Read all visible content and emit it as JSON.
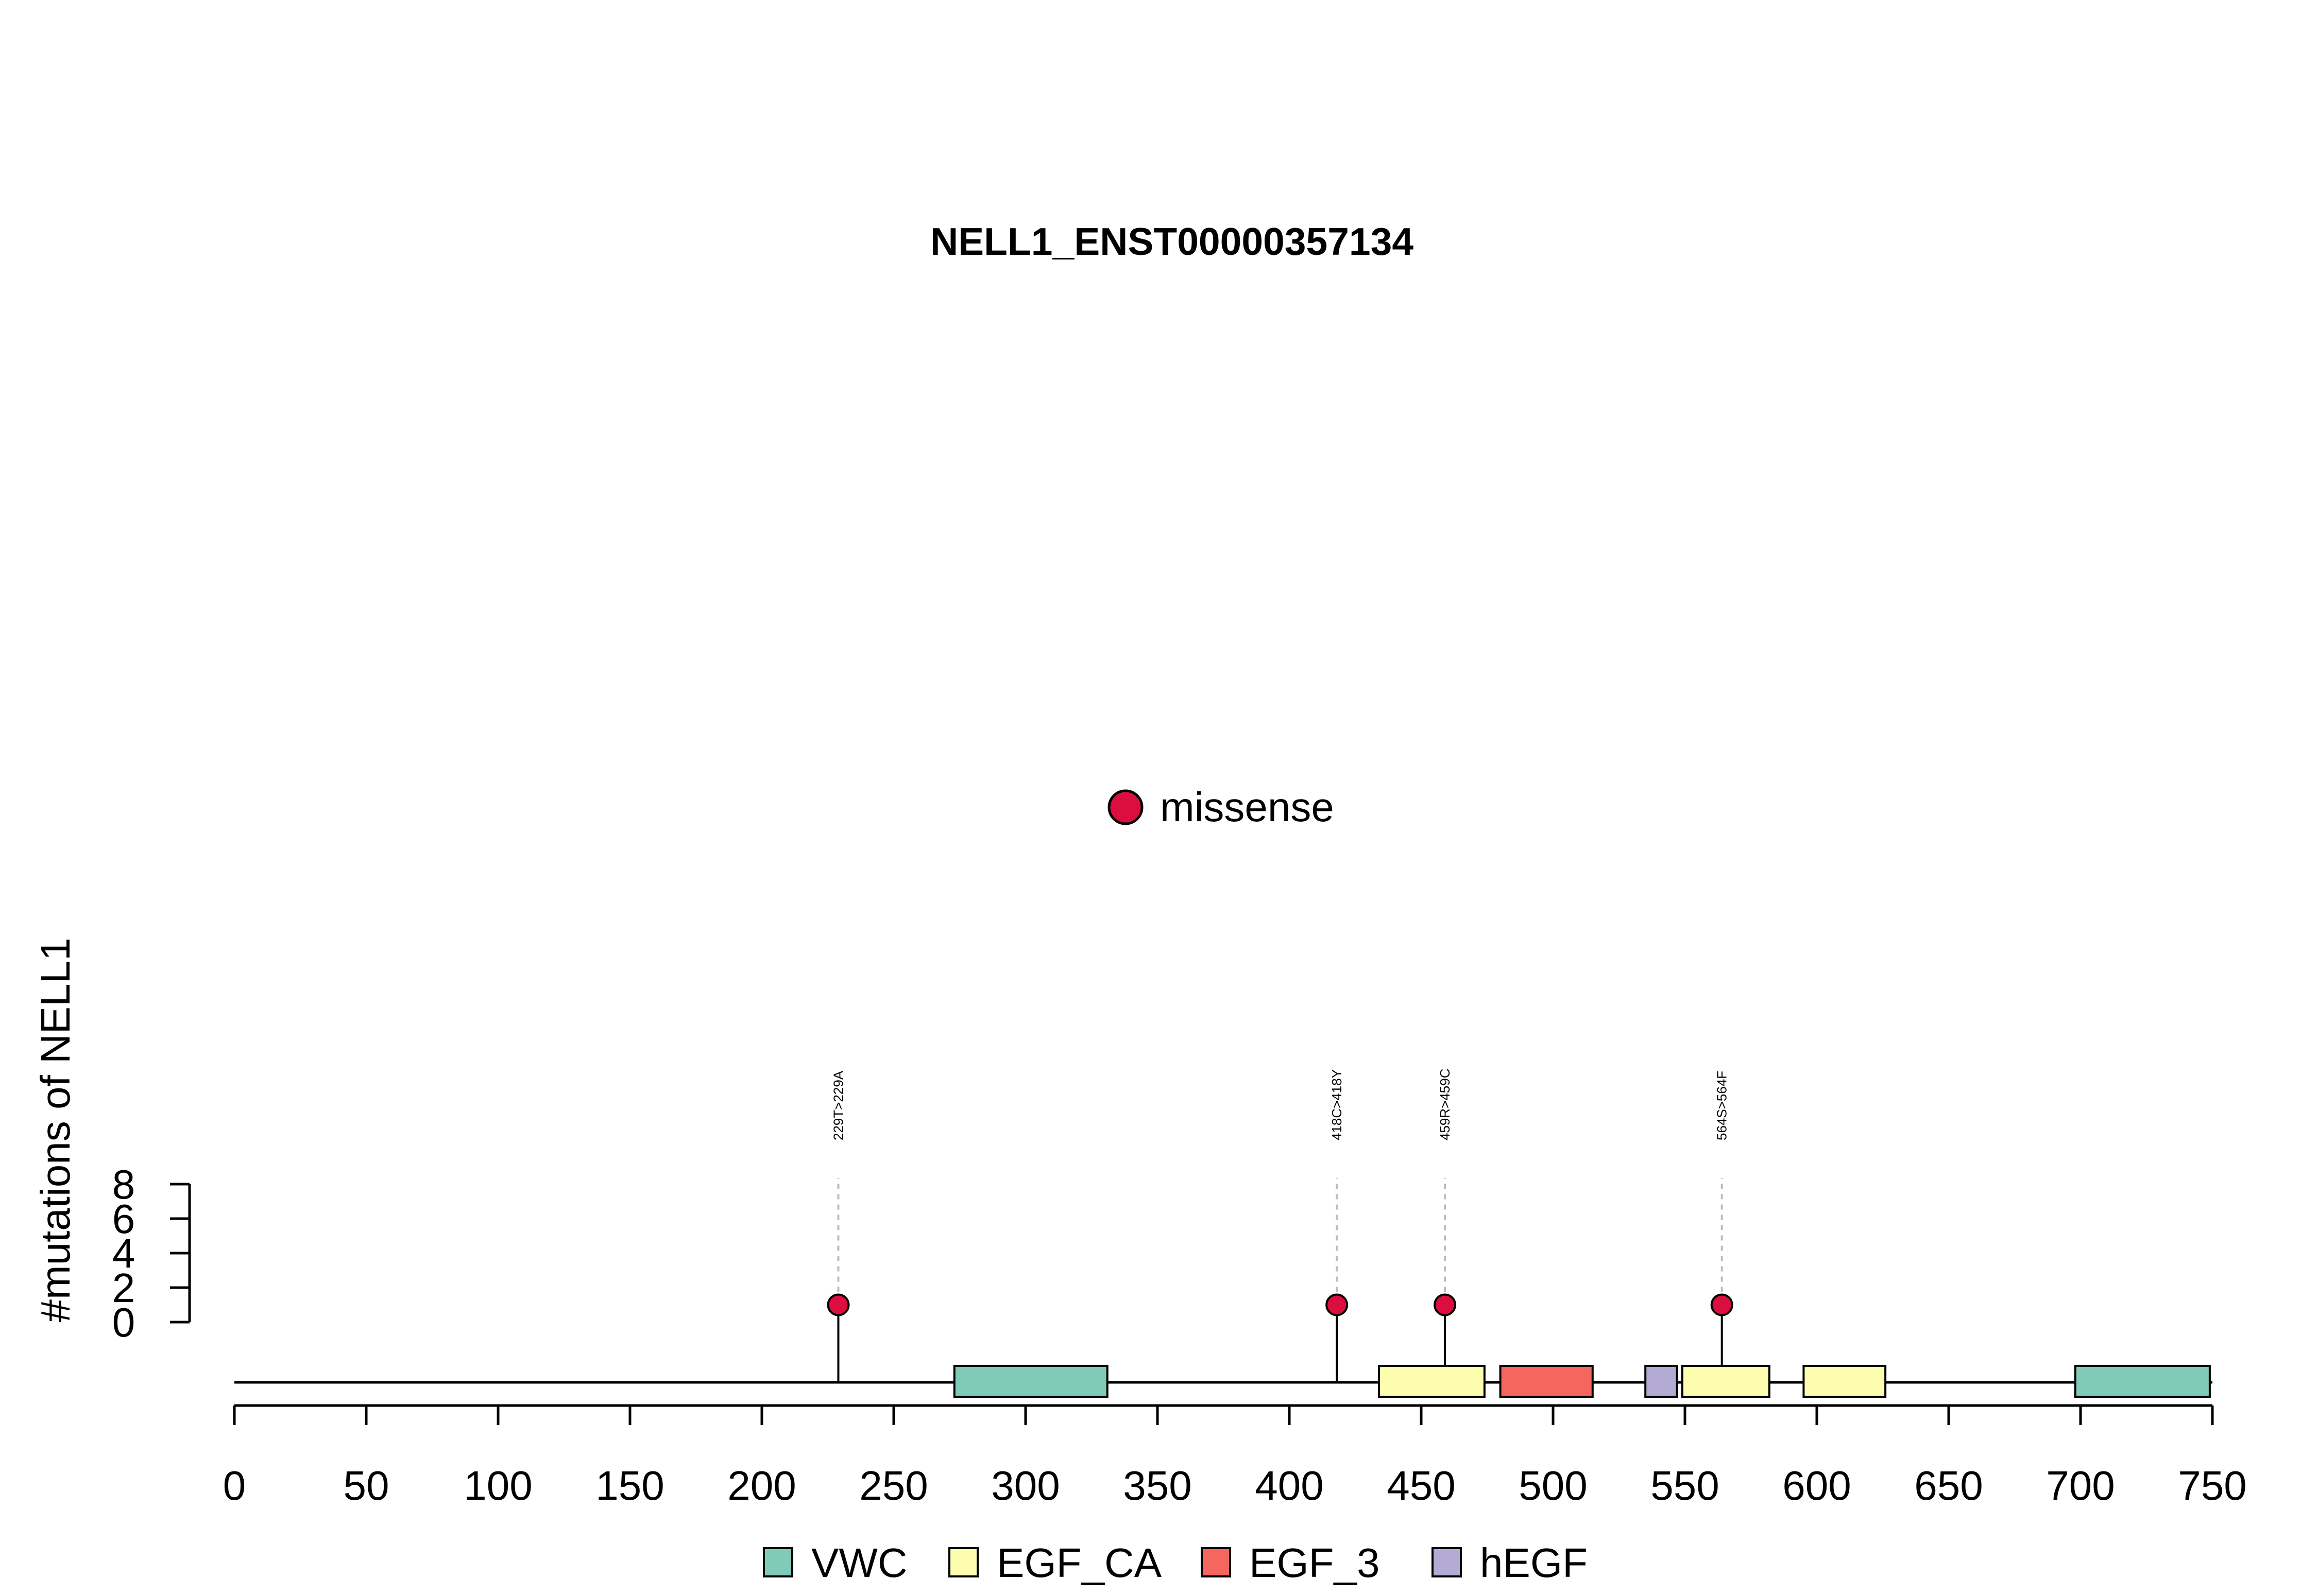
{
  "chart_data": {
    "type": "lollipop",
    "title": "NELL1_ENST00000357134",
    "ylabel": "#mutations of NELL1",
    "xlabel": "",
    "xlim": [
      0,
      750
    ],
    "x_ticks": [
      0,
      50,
      100,
      150,
      200,
      250,
      300,
      350,
      400,
      450,
      500,
      550,
      600,
      650,
      700,
      750
    ],
    "ylim": [
      0,
      8
    ],
    "y_ticks": [
      0,
      2,
      4,
      6,
      8
    ],
    "grid": false,
    "mutation_legend": [
      {
        "name": "missense",
        "color": "#DC0D3F"
      }
    ],
    "mutations": [
      {
        "position": 229,
        "count": 1,
        "label": "229T>229A",
        "type": "missense"
      },
      {
        "position": 418,
        "count": 1,
        "label": "418C>418Y",
        "type": "missense"
      },
      {
        "position": 459,
        "count": 1,
        "label": "459R>459C",
        "type": "missense"
      },
      {
        "position": 564,
        "count": 1,
        "label": "564S>564F",
        "type": "missense"
      }
    ],
    "domains": [
      {
        "name": "VWC",
        "start": 273,
        "end": 331
      },
      {
        "name": "EGF_CA",
        "start": 434,
        "end": 474
      },
      {
        "name": "EGF_3",
        "start": 480,
        "end": 515
      },
      {
        "name": "hEGF",
        "start": 535,
        "end": 547
      },
      {
        "name": "EGF_CA",
        "start": 549,
        "end": 582
      },
      {
        "name": "EGF_CA",
        "start": 595,
        "end": 626
      },
      {
        "name": "VWC",
        "start": 698,
        "end": 749
      }
    ],
    "domain_legend": [
      {
        "name": "VWC",
        "color": "#7FCAB8"
      },
      {
        "name": "EGF_CA",
        "color": "#FDFDB0"
      },
      {
        "name": "EGF_3",
        "color": "#F4665E"
      },
      {
        "name": "hEGF",
        "color": "#B3ABD3"
      }
    ]
  }
}
